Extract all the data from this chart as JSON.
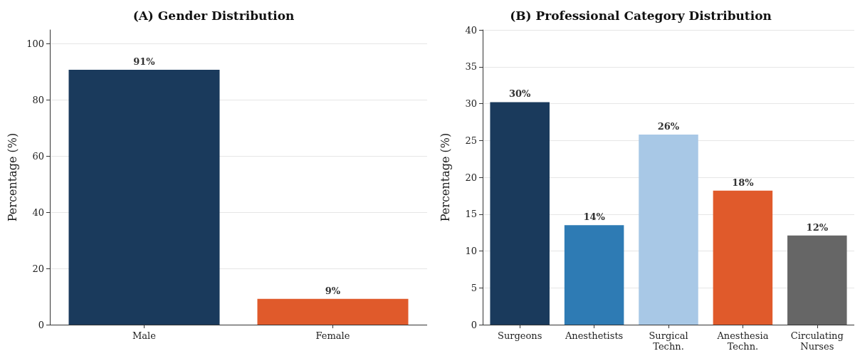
{
  "chart_data": [
    {
      "type": "bar",
      "title": "(A) Gender Distribution",
      "ylabel": "Percentage (%)",
      "categories": [
        "Male",
        "Female"
      ],
      "values": [
        90.8,
        9.2
      ],
      "colors": [
        "#1a3a5c",
        "#e05a2b"
      ],
      "value_labels": [
        "91%",
        "9%"
      ],
      "ylim": [
        0,
        105
      ],
      "yticks": [
        0,
        20,
        40,
        60,
        80,
        100
      ],
      "grid": "y"
    },
    {
      "type": "bar",
      "title": "(B) Professional Category Distribution",
      "ylabel": "Percentage (%)",
      "categories": [
        "Surgeons",
        "Anesthetists",
        "Surgical\nTechn.",
        "Anesthesia\nTechn.",
        "Circulating\nNurses"
      ],
      "values": [
        30.2,
        13.5,
        25.8,
        18.2,
        12.1
      ],
      "colors": [
        "#1a3a5c",
        "#2e7bb4",
        "#a8c8e6",
        "#e05a2b",
        "#666666"
      ],
      "value_labels": [
        "30%",
        "14%",
        "26%",
        "18%",
        "12%"
      ],
      "ylim": [
        0,
        40
      ],
      "yticks": [
        0,
        5,
        10,
        15,
        20,
        25,
        30,
        35,
        40
      ],
      "grid": "y"
    }
  ]
}
